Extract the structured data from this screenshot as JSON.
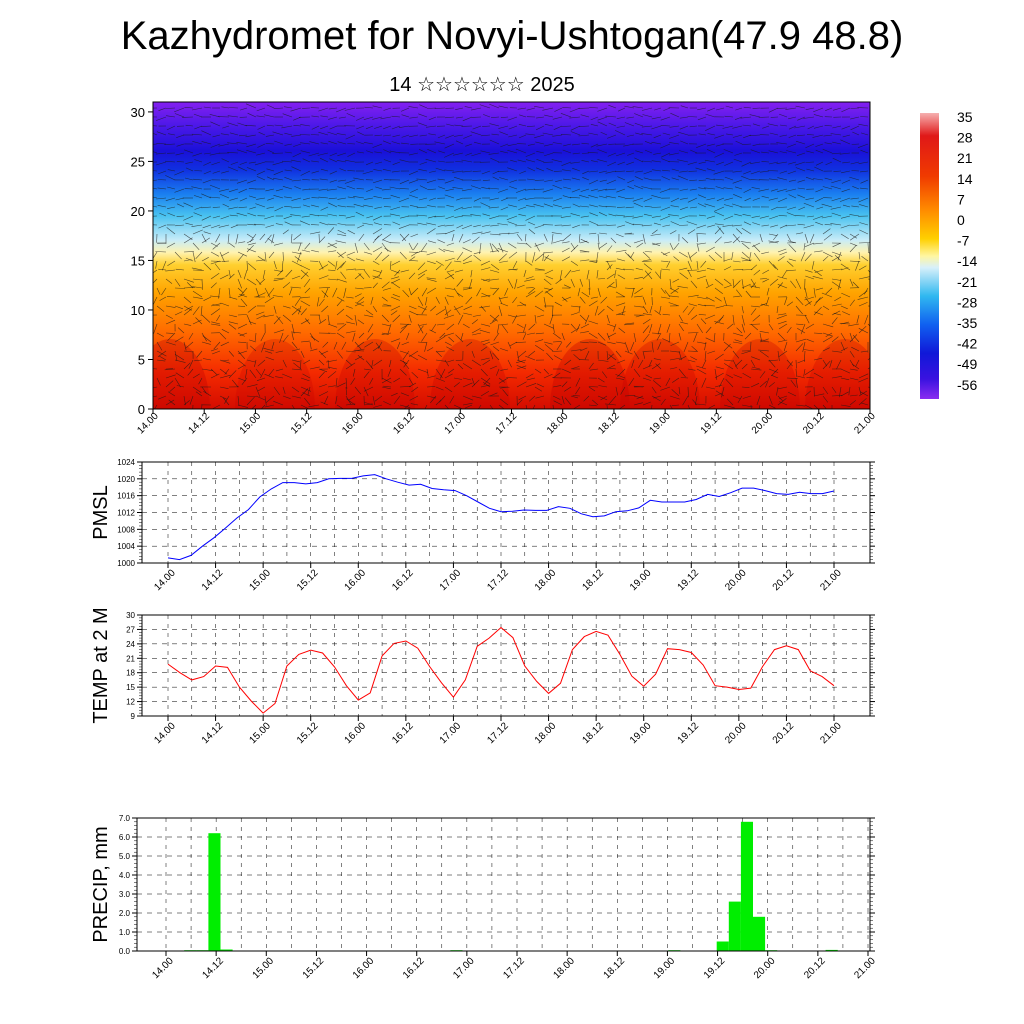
{
  "title": "Kazhydromet for Novyi-Ushtogan(47.9 48.8)",
  "subtitle": "14 ☆☆☆☆☆☆ 2025",
  "colors": {
    "pmsl_line": "#0000ff",
    "temp_line": "#ff0000",
    "precip_bar": "#00ee00"
  },
  "chart_data": [
    {
      "type": "heatmap",
      "title": "",
      "ylabel": "",
      "x_tick_labels": [
        "14.00",
        "14.12",
        "15.00",
        "15.12",
        "16.00",
        "16.12",
        "17.00",
        "17.12",
        "18.00",
        "18.12",
        "19.00",
        "19.12",
        "20.00",
        "20.12",
        "21.00"
      ],
      "ylim": [
        0,
        31
      ],
      "y_ticks": [
        0,
        5,
        10,
        15,
        20,
        25,
        30
      ],
      "colorbar_labels": [
        "35",
        "28",
        "21",
        "14",
        "7",
        "0",
        "-7",
        "-14",
        "-21",
        "-28",
        "-35",
        "-42",
        "-49",
        "-56"
      ],
      "overlay": "wind barbs"
    },
    {
      "type": "line",
      "ylabel": "PMSL",
      "ylim": [
        1000,
        1024
      ],
      "y_ticks": [
        1000,
        1004,
        1008,
        1012,
        1016,
        1020,
        1024
      ],
      "x_tick_labels": [
        "14.00",
        "14.12",
        "15.00",
        "15.12",
        "16.00",
        "16.12",
        "17.00",
        "17.12",
        "18.00",
        "18.12",
        "19.00",
        "19.12",
        "20.00",
        "20.12",
        "21.00"
      ],
      "series": [
        {
          "values": [
            1001.2,
            1000.8,
            1001.8,
            1004,
            1006,
            1008.3,
            1010.7,
            1012.7,
            1015.7,
            1017.6,
            1019.1,
            1019.1,
            1018.8,
            1019.1,
            1020.0,
            1020.1,
            1020.1,
            1020.7,
            1021.0,
            1020.0,
            1019.2,
            1018.5,
            1018.7,
            1017.7,
            1017.4,
            1017.2,
            1016.0,
            1014.5,
            1013.0,
            1012.2,
            1012.3,
            1012.6,
            1012.5,
            1012.5,
            1013.4,
            1013.0,
            1011.7,
            1011.0,
            1011.2,
            1012.2,
            1012.4,
            1013.1,
            1014.9,
            1014.5,
            1014.5,
            1014.5,
            1015.1,
            1016.3,
            1015.8,
            1016.7,
            1017.8,
            1017.8,
            1017.2,
            1016.5,
            1016.3,
            1016.8,
            1016.5,
            1016.5,
            1017.1
          ]
        }
      ]
    },
    {
      "type": "line",
      "ylabel": "TEMP at 2 M",
      "ylim": [
        9,
        30
      ],
      "y_ticks": [
        9,
        12,
        15,
        18,
        21,
        24,
        27,
        30
      ],
      "x_tick_labels": [
        "14.00",
        "14.12",
        "15.00",
        "15.12",
        "16.00",
        "16.12",
        "17.00",
        "17.12",
        "18.00",
        "18.12",
        "19.00",
        "19.12",
        "20.00",
        "20.12",
        "21.00"
      ],
      "series": [
        {
          "values": [
            19.8,
            18,
            16.5,
            17.2,
            19.4,
            19.1,
            15,
            12.1,
            9.6,
            11.6,
            19.4,
            21.8,
            22.7,
            22.1,
            19.2,
            15.3,
            12.3,
            13.8,
            21.5,
            24.1,
            24.6,
            23.1,
            19.3,
            15.9,
            12.9,
            16.5,
            23.5,
            25.2,
            27.4,
            25.3,
            19.4,
            16.2,
            13.7,
            15.8,
            22.8,
            25.5,
            26.6,
            25.8,
            21.8,
            17.3,
            15.2,
            17.7,
            23,
            22.8,
            22.2,
            19.6,
            15.3,
            15,
            14.5,
            14.8,
            19.3,
            22.8,
            23.6,
            22.8,
            18.4,
            17.2,
            15.3
          ]
        }
      ]
    },
    {
      "type": "bar",
      "ylabel": "PRECIP, mm",
      "ylim": [
        0,
        7
      ],
      "y_tick_labels": [
        "0.0",
        "1.0",
        "2.0",
        "3.0",
        "4.0",
        "5.0",
        "6.0",
        "7.0"
      ],
      "x_tick_labels": [
        "14.00",
        "14.12",
        "15.00",
        "15.12",
        "16.00",
        "16.12",
        "17.00",
        "17.12",
        "18.00",
        "18.12",
        "19.00",
        "19.12",
        "20.00",
        "20.12",
        "21.00"
      ],
      "series": [
        {
          "values": [
            0,
            0,
            0.04,
            0.04,
            6.2,
            0.08,
            0,
            0,
            0,
            0,
            0,
            0,
            0,
            0,
            0,
            0,
            0,
            0,
            0,
            0,
            0,
            0,
            0,
            0,
            0.04,
            0,
            0,
            0,
            0,
            0,
            0,
            0,
            0,
            0,
            0,
            0,
            0,
            0,
            0,
            0,
            0,
            0,
            0.04,
            0,
            0,
            0,
            0.5,
            2.6,
            6.8,
            1.8,
            0.04,
            0,
            0,
            0,
            0,
            0.06,
            0,
            0,
            0
          ]
        }
      ]
    }
  ]
}
